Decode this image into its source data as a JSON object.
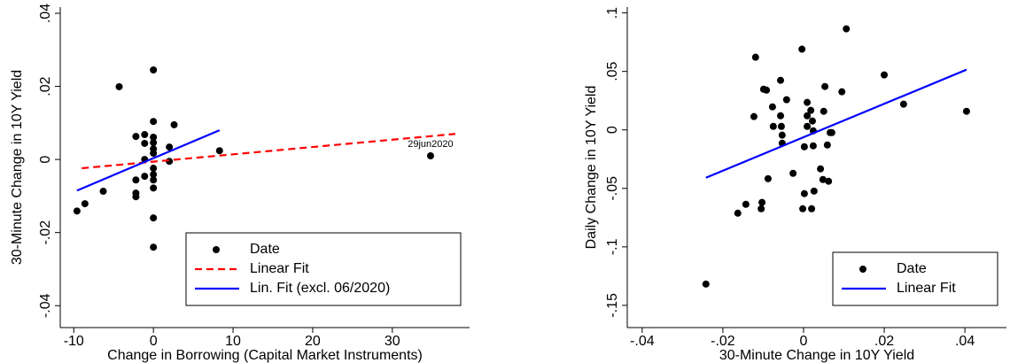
{
  "chart_data": [
    {
      "type": "scatter",
      "xlabel": "Change in Borrowing (Capital Market Instruments)",
      "ylabel": "30-Minute Change in 10Y Yield",
      "xlim": [
        -11.7,
        39.7
      ],
      "ylim": [
        -0.046,
        0.0417
      ],
      "xticks": [
        -10,
        0,
        10,
        20,
        30
      ],
      "yticks": [
        {
          "value": -0.04,
          "label": "-.04"
        },
        {
          "value": -0.02,
          "label": "-.02"
        },
        0,
        {
          "value": 0.02,
          "label": ".02"
        },
        {
          "value": 0.04,
          "label": ".04"
        }
      ],
      "legend": "lower right",
      "series": [
        {
          "name": "Date",
          "color": "#000000",
          "style": "marker",
          "x": [
            -9.6,
            -8.6,
            -6.3,
            -4.3,
            -2.2,
            -2.2,
            -2.2,
            -2.2,
            -1.1,
            -1.1,
            -1.1,
            -1.1,
            0,
            0,
            0,
            0,
            0,
            0,
            0,
            0,
            0,
            0,
            0,
            0,
            2.6,
            2,
            2,
            8.3,
            34.8
          ],
          "values": [
            -0.0141,
            -0.0121,
            -0.0087,
            0.0199,
            0.0063,
            -0.0056,
            -0.0092,
            -0.0102,
            0.0068,
            0.0044,
            0,
            -0.0046,
            0.0245,
            0.0104,
            0.0061,
            0.0046,
            0.0029,
            0.0017,
            -0.0024,
            -0.0041,
            -0.0056,
            -0.0078,
            -0.016,
            -0.024,
            0.0095,
            0.0034,
            -0.0005,
            0.0024,
            0.001
          ]
        },
        {
          "name": "Linear Fit",
          "color": "#ff0000",
          "style": "dashed",
          "x": [
            -9,
            37.9
          ],
          "values": [
            -0.0024,
            0.007
          ]
        },
        {
          "name": "Lin. Fit (excl. 06/2020)",
          "color": "#0000ff",
          "style": "solid",
          "x": [
            -9.6,
            8.3
          ],
          "values": [
            -0.0085,
            0.008
          ]
        }
      ],
      "annotations": [
        {
          "text": "29jun2020",
          "x": 34.8,
          "y": 0.001
        }
      ]
    },
    {
      "type": "scatter",
      "xlabel": "30-Minute Change in 10Y Yield",
      "ylabel": "Daily Change in 10Y Yield",
      "xlim": [
        -0.0437,
        0.0503
      ],
      "ylim": [
        -0.169,
        0.105
      ],
      "xticks": [
        {
          "value": -0.04,
          "label": "-.04"
        },
        {
          "value": -0.02,
          "label": "-.02"
        },
        0,
        {
          "value": 0.02,
          "label": ".02"
        },
        {
          "value": 0.04,
          "label": ".04"
        }
      ],
      "yticks": [
        {
          "value": -0.15,
          "label": "-.15"
        },
        {
          "value": -0.1,
          "label": "-.1"
        },
        {
          "value": -0.05,
          "label": "-.05"
        },
        0,
        {
          "value": 0.05,
          "label": ".05"
        },
        {
          "value": 0.1,
          "label": ".1"
        }
      ],
      "legend": "lower right",
      "series": [
        {
          "name": "Date",
          "color": "#000000",
          "style": "marker",
          "x": [
            -0.0242,
            -0.0163,
            -0.0143,
            -0.0119,
            -0.0123,
            -0.0105,
            -0.0103,
            -0.0099,
            -0.0092,
            -0.0088,
            -0.0077,
            -0.0075,
            -0.0057,
            -0.0057,
            -0.0055,
            -0.0053,
            -0.0053,
            -0.0042,
            -0.0026,
            -0.0004,
            -0.0002,
            0.0002,
            0.0002,
            0.0009,
            0.0009,
            0.0009,
            0.0018,
            0.0022,
            0.002,
            0.0024,
            0.0024,
            0.0026,
            0.0042,
            0.0048,
            0.005,
            0.0053,
            0.0059,
            0.0062,
            0.0066,
            0.007,
            0.0095,
            0.0106,
            0.02,
            0.0248,
            0.0404
          ],
          "values": [
            -0.1318,
            -0.0712,
            -0.0636,
            0.0621,
            0.0114,
            -0.0674,
            -0.062,
            0.0348,
            0.034,
            -0.0417,
            0.0197,
            0.003,
            0.0424,
            0.0121,
            0.003,
            -0.0045,
            -0.0114,
            0.0258,
            -0.0371,
            0.069,
            -0.0674,
            -0.0144,
            -0.0545,
            0.003,
            0.0235,
            0.0121,
            0.0167,
            0.0076,
            -0.0674,
            -0.0008,
            -0.0136,
            -0.0523,
            -0.0333,
            -0.0424,
            0.0159,
            0.0371,
            -0.0129,
            -0.0439,
            -0.0023,
            -0.0023,
            0.0326,
            0.0864,
            0.047,
            0.022,
            0.0159
          ]
        },
        {
          "name": "Linear Fit",
          "color": "#0000ff",
          "style": "solid",
          "x": [
            -0.0242,
            0.0404
          ],
          "values": [
            -0.0409,
            0.0515
          ]
        }
      ]
    }
  ]
}
